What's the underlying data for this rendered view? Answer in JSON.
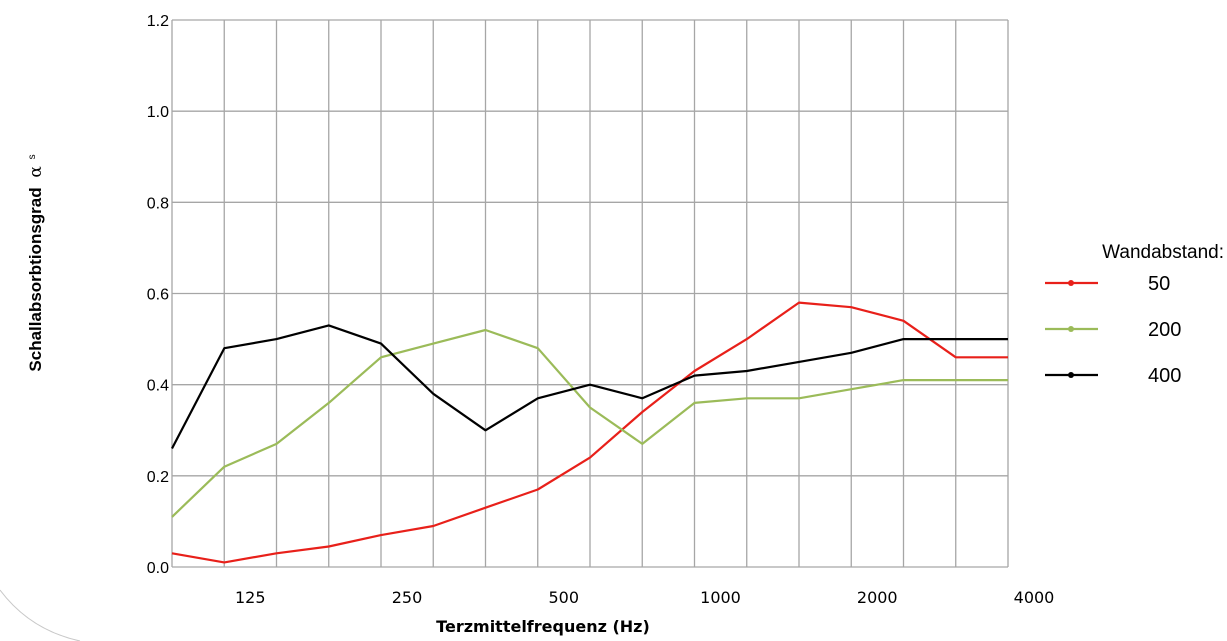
{
  "chart_data": {
    "type": "line",
    "xlabel": "Terzmittelfrequenz (Hz)",
    "ylabel": "Schallabsorbtionsgrad",
    "ylabel_symbol": "α",
    "ylabel_subscript": "s",
    "x": [
      100,
      125,
      160,
      200,
      250,
      315,
      400,
      500,
      630,
      800,
      1000,
      1250,
      1600,
      2000,
      2500,
      3150,
      4000
    ],
    "x_tick_labels": [
      "125",
      "250",
      "500",
      "1000",
      "2000",
      "4000"
    ],
    "x_tick_values": [
      125,
      250,
      500,
      1000,
      2000,
      4000
    ],
    "y_tick_labels": [
      "0.0",
      "0.2",
      "0.4",
      "0.6",
      "0.8",
      "1.0",
      "1.2"
    ],
    "ylim": [
      0,
      1.2
    ],
    "grid": true,
    "legend": {
      "title": "Wandabstand:",
      "placement": "right"
    },
    "series": [
      {
        "name": "50",
        "color": "#e8201a",
        "values": [
          0.03,
          0.01,
          0.03,
          0.045,
          0.07,
          0.09,
          0.13,
          0.17,
          0.24,
          0.34,
          0.43,
          0.5,
          0.58,
          0.57,
          0.54,
          0.46,
          0.46
        ]
      },
      {
        "name": "200",
        "color": "#9bbb59",
        "values": [
          0.11,
          0.22,
          0.27,
          0.36,
          0.46,
          0.49,
          0.52,
          0.48,
          0.35,
          0.27,
          0.36,
          0.37,
          0.37,
          0.39,
          0.41,
          0.41,
          0.41
        ]
      },
      {
        "name": "400",
        "color": "#000000",
        "values": [
          0.26,
          0.48,
          0.5,
          0.53,
          0.49,
          0.38,
          0.3,
          0.37,
          0.4,
          0.37,
          0.42,
          0.43,
          0.45,
          0.47,
          0.5,
          0.5,
          0.5
        ]
      }
    ]
  }
}
